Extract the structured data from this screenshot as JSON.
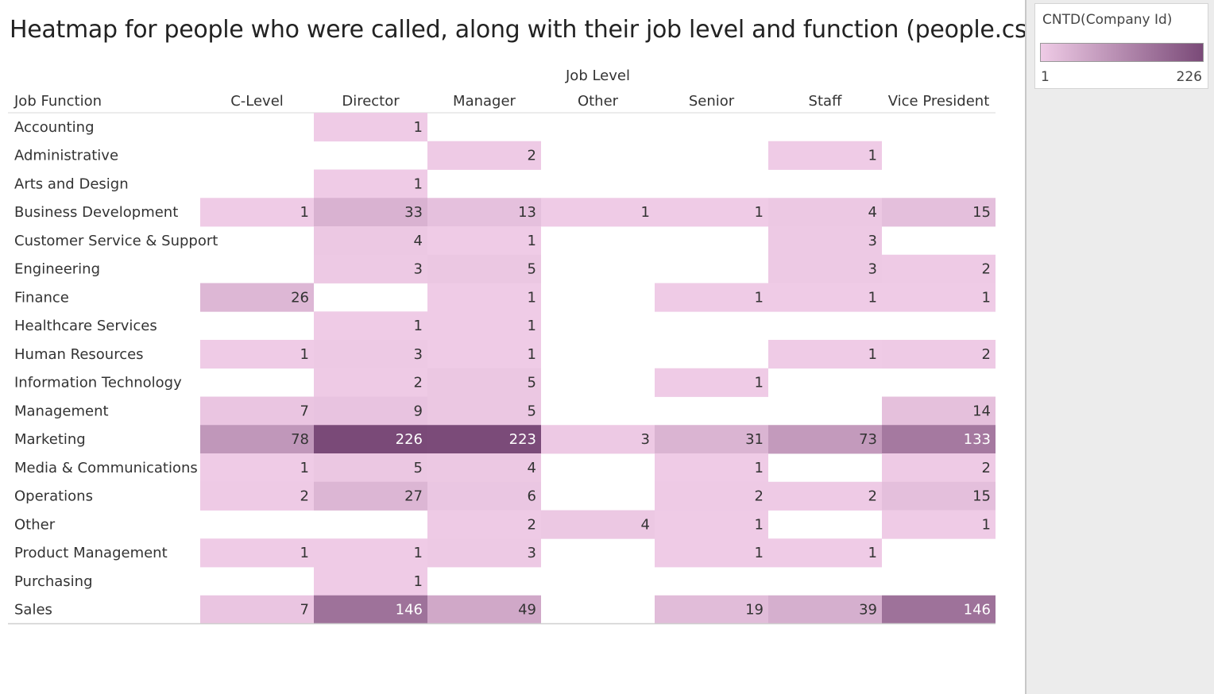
{
  "title": "Heatmap for people who were called, along with their job level and function (people.csv)",
  "legend": {
    "title": "CNTD(Company Id)",
    "min_label": "1",
    "max_label": "226",
    "color_low": "#efcbe6",
    "color_high": "#7a4a78"
  },
  "chart_data": {
    "type": "heatmap",
    "title": "Heatmap for people who were called, along with their job level and function (people.csv)",
    "column_group_label": "Job Level",
    "row_header_label": "Job Function",
    "columns": [
      "C-Level",
      "Director",
      "Manager",
      "Other",
      "Senior",
      "Staff",
      "Vice President"
    ],
    "rows": [
      "Accounting",
      "Administrative",
      "Arts and Design",
      "Business Development",
      "Customer Service & Support",
      "Engineering",
      "Finance",
      "Healthcare Services",
      "Human Resources",
      "Information Technology",
      "Management",
      "Marketing",
      "Media & Communications",
      "Operations",
      "Other",
      "Product Management",
      "Purchasing",
      "Sales"
    ],
    "values": [
      [
        null,
        1,
        null,
        null,
        null,
        null,
        null
      ],
      [
        null,
        null,
        2,
        null,
        null,
        1,
        null
      ],
      [
        null,
        1,
        null,
        null,
        null,
        null,
        null
      ],
      [
        1,
        33,
        13,
        1,
        1,
        4,
        15
      ],
      [
        null,
        4,
        1,
        null,
        null,
        3,
        null
      ],
      [
        null,
        3,
        5,
        null,
        null,
        3,
        2
      ],
      [
        26,
        null,
        1,
        null,
        1,
        1,
        1
      ],
      [
        null,
        1,
        1,
        null,
        null,
        null,
        null
      ],
      [
        1,
        3,
        1,
        null,
        null,
        1,
        2
      ],
      [
        null,
        2,
        5,
        null,
        1,
        null,
        null
      ],
      [
        7,
        9,
        5,
        null,
        null,
        null,
        14
      ],
      [
        78,
        226,
        223,
        3,
        31,
        73,
        133
      ],
      [
        1,
        5,
        4,
        null,
        1,
        null,
        2
      ],
      [
        2,
        27,
        6,
        null,
        2,
        2,
        15
      ],
      [
        null,
        null,
        2,
        4,
        1,
        null,
        1
      ],
      [
        1,
        1,
        3,
        null,
        1,
        1,
        null
      ],
      [
        null,
        1,
        null,
        null,
        null,
        null,
        null
      ],
      [
        7,
        146,
        49,
        null,
        19,
        39,
        146
      ]
    ],
    "color_scale": {
      "measure": "CNTD(Company Id)",
      "min": 1,
      "max": 226,
      "low_color": "#efcbe6",
      "high_color": "#7a4a78"
    }
  }
}
